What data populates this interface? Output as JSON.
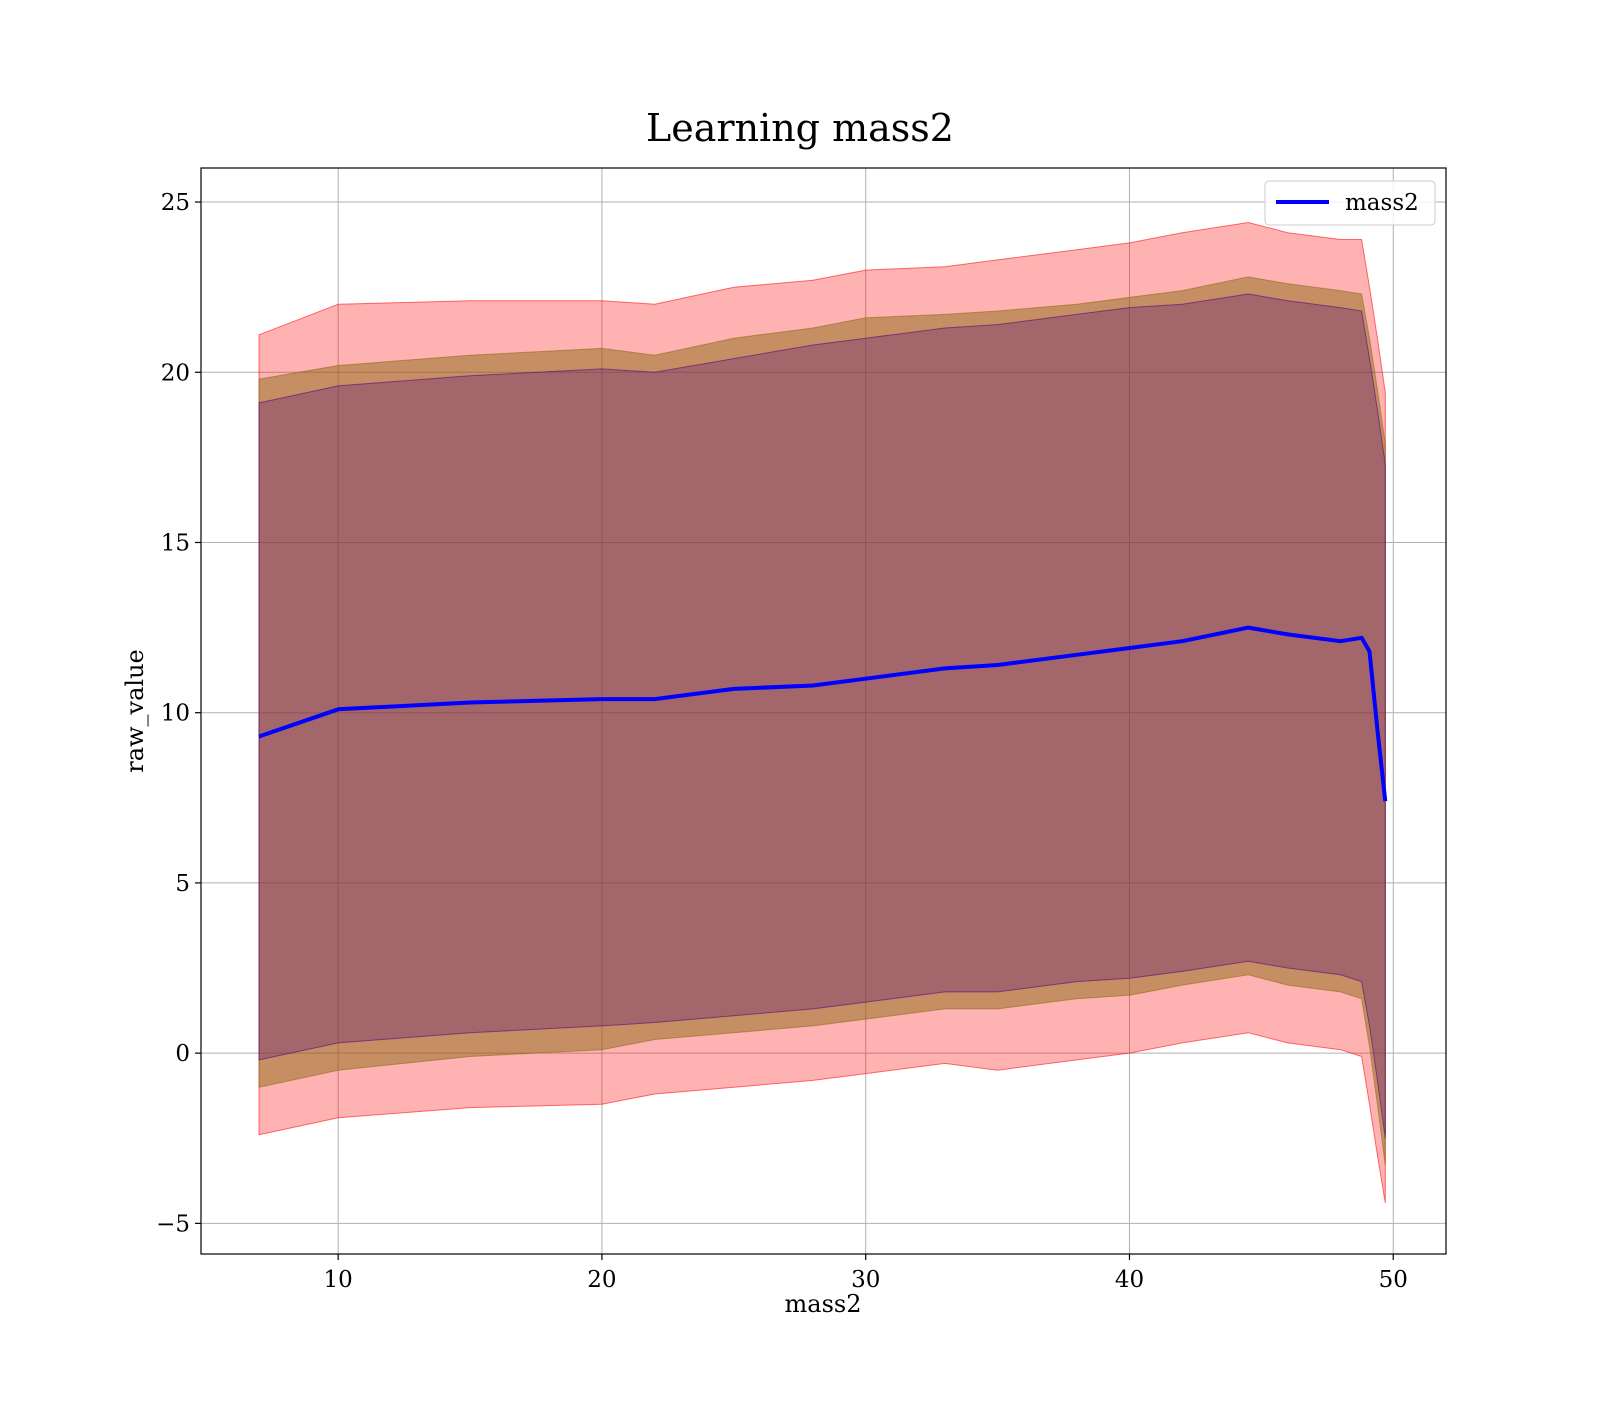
{
  "chart_data": {
    "type": "line",
    "title": "Learning mass2",
    "xlabel": "mass2",
    "ylabel": "raw_value",
    "xlim": [
      4.8,
      52.0
    ],
    "ylim": [
      -5.9,
      26.0
    ],
    "xticks": [
      10,
      20,
      30,
      40,
      50
    ],
    "yticks": [
      -5,
      0,
      5,
      10,
      15,
      20,
      25
    ],
    "xtick_labels": [
      "10",
      "20",
      "30",
      "40",
      "50"
    ],
    "ytick_labels": [
      "−5",
      "0",
      "5",
      "10",
      "15",
      "20",
      "25"
    ],
    "grid": true,
    "legend": {
      "placement": "top-right",
      "entries": [
        "mass2"
      ]
    },
    "colors": {
      "line": "#0000ff",
      "outer_band": "#ff0000",
      "middle_band": "#8b6914",
      "inner_band": "#4b0082"
    },
    "x": [
      7.0,
      10.0,
      15.0,
      20.0,
      22.0,
      25.0,
      28.0,
      30.0,
      33.0,
      35.0,
      38.0,
      40.0,
      42.0,
      44.5,
      46.0,
      48.0,
      48.8,
      49.1,
      49.4,
      49.7
    ],
    "series": [
      {
        "name": "mass2",
        "role": "mean",
        "values": [
          9.3,
          10.1,
          10.3,
          10.4,
          10.4,
          10.7,
          10.8,
          11.0,
          11.3,
          11.4,
          11.7,
          11.9,
          12.1,
          12.5,
          12.3,
          12.1,
          12.2,
          11.8,
          9.5,
          7.4
        ]
      },
      {
        "name": "outer band",
        "role": "band",
        "upper": [
          21.1,
          22.0,
          22.1,
          22.1,
          22.0,
          22.5,
          22.7,
          23.0,
          23.1,
          23.3,
          23.6,
          23.8,
          24.1,
          24.4,
          24.1,
          23.9,
          23.9,
          22.5,
          21.0,
          19.4
        ],
        "lower": [
          -2.4,
          -1.9,
          -1.6,
          -1.5,
          -1.2,
          -1.0,
          -0.8,
          -0.6,
          -0.3,
          -0.5,
          -0.2,
          0.0,
          0.3,
          0.6,
          0.3,
          0.1,
          -0.1,
          -1.5,
          -3.0,
          -4.4
        ]
      },
      {
        "name": "middle band",
        "role": "band",
        "upper": [
          19.8,
          20.2,
          20.5,
          20.7,
          20.5,
          21.0,
          21.3,
          21.6,
          21.7,
          21.8,
          22.0,
          22.2,
          22.4,
          22.8,
          22.6,
          22.4,
          22.3,
          21.0,
          19.5,
          17.9
        ],
        "lower": [
          -1.0,
          -0.5,
          -0.1,
          0.1,
          0.4,
          0.6,
          0.8,
          1.0,
          1.3,
          1.3,
          1.6,
          1.7,
          2.0,
          2.3,
          2.0,
          1.8,
          1.6,
          0.2,
          -1.5,
          -3.3
        ]
      },
      {
        "name": "inner band",
        "role": "band",
        "upper": [
          19.1,
          19.6,
          19.9,
          20.1,
          20.0,
          20.4,
          20.8,
          21.0,
          21.3,
          21.4,
          21.7,
          21.9,
          22.0,
          22.3,
          22.1,
          21.9,
          21.8,
          20.4,
          18.9,
          17.3
        ],
        "lower": [
          -0.2,
          0.3,
          0.6,
          0.8,
          0.9,
          1.1,
          1.3,
          1.5,
          1.8,
          1.8,
          2.1,
          2.2,
          2.4,
          2.7,
          2.5,
          2.3,
          2.1,
          0.8,
          -0.8,
          -2.5
        ]
      }
    ]
  }
}
